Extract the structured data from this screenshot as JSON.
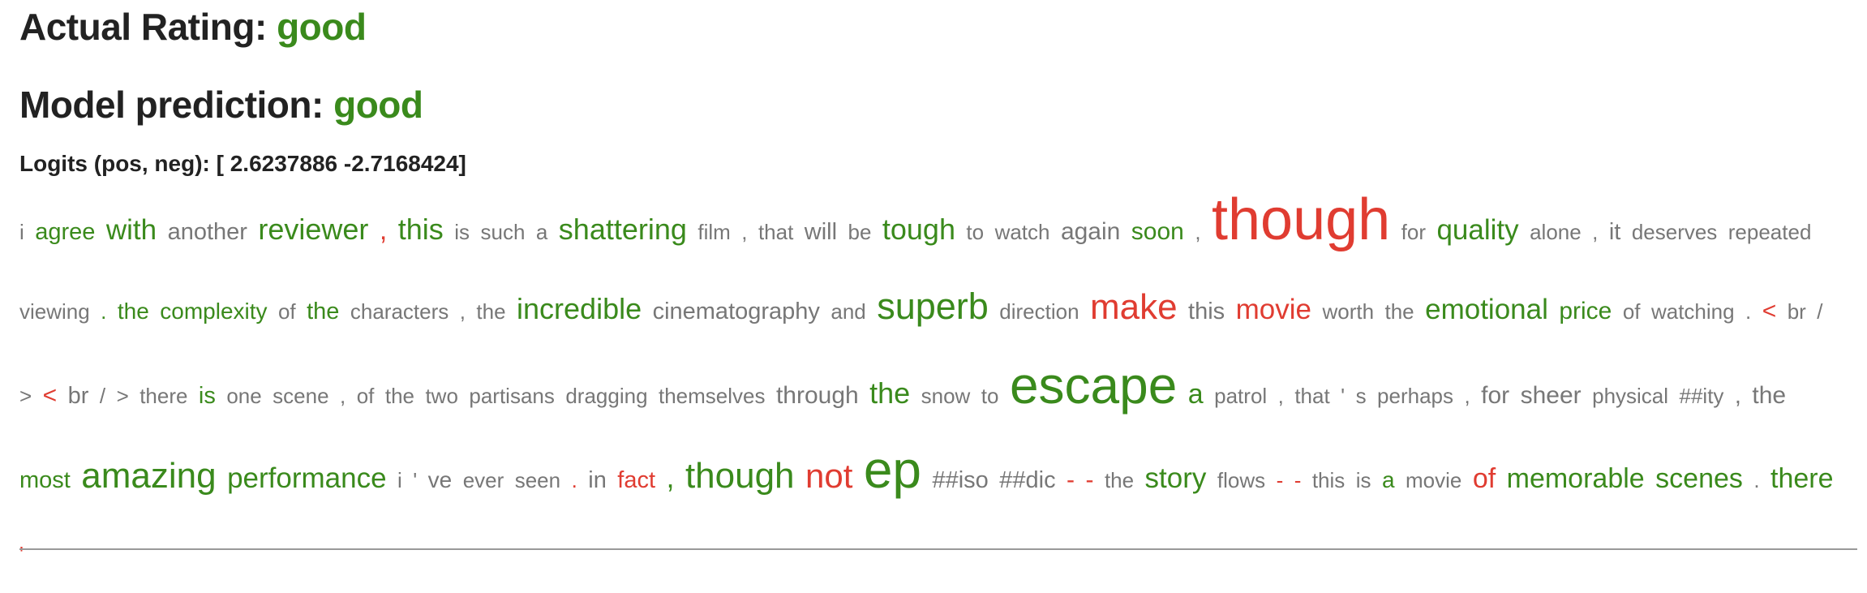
{
  "header": {
    "actual_label": "Actual Rating:",
    "actual_value": "good",
    "prediction_label": "Model prediction:",
    "prediction_value": "good",
    "logits_text": "Logits (pos, neg): [ 2.6237886 -2.7168424]"
  },
  "colors": {
    "positive": "#3a8a1c",
    "negative": "#e03c31",
    "neutral": "#777777"
  },
  "tokens": [
    {
      "t": "i",
      "c": "grey",
      "s": 26
    },
    {
      "t": "agree",
      "c": "green",
      "s": 29
    },
    {
      "t": "with",
      "c": "green",
      "s": 35
    },
    {
      "t": "another",
      "c": "grey",
      "s": 29
    },
    {
      "t": "reviewer",
      "c": "green",
      "s": 36
    },
    {
      "t": ",",
      "c": "red",
      "s": 34
    },
    {
      "t": "this",
      "c": "green",
      "s": 36
    },
    {
      "t": "is",
      "c": "grey",
      "s": 26
    },
    {
      "t": "such",
      "c": "grey",
      "s": 26
    },
    {
      "t": "a",
      "c": "grey",
      "s": 26
    },
    {
      "t": "shattering",
      "c": "green",
      "s": 36
    },
    {
      "t": "film",
      "c": "grey",
      "s": 26
    },
    {
      "t": ",",
      "c": "grey",
      "s": 26
    },
    {
      "t": "that",
      "c": "grey",
      "s": 26
    },
    {
      "t": "will",
      "c": "grey",
      "s": 29
    },
    {
      "t": "be",
      "c": "grey",
      "s": 26
    },
    {
      "t": "tough",
      "c": "green",
      "s": 36
    },
    {
      "t": "to",
      "c": "grey",
      "s": 26
    },
    {
      "t": "watch",
      "c": "grey",
      "s": 26
    },
    {
      "t": "again",
      "c": "grey",
      "s": 30
    },
    {
      "t": "soon",
      "c": "green",
      "s": 30
    },
    {
      "t": ",",
      "c": "grey",
      "s": 26
    },
    {
      "t": "though",
      "c": "red",
      "s": 72
    },
    {
      "t": "for",
      "c": "grey",
      "s": 26
    },
    {
      "t": "quality",
      "c": "green",
      "s": 35
    },
    {
      "t": "alone",
      "c": "grey",
      "s": 26
    },
    {
      "t": ",",
      "c": "grey",
      "s": 26
    },
    {
      "t": "it",
      "c": "grey",
      "s": 29
    },
    {
      "t": "deserves",
      "c": "grey",
      "s": 26
    },
    {
      "t": "repeated",
      "c": "grey",
      "s": 26
    },
    {
      "t": "viewing",
      "c": "grey",
      "s": 26
    },
    {
      "t": ".",
      "c": "green",
      "s": 26
    },
    {
      "t": "the",
      "c": "green",
      "s": 28
    },
    {
      "t": "complexity",
      "c": "green",
      "s": 28
    },
    {
      "t": "of",
      "c": "grey",
      "s": 26
    },
    {
      "t": "the",
      "c": "green",
      "s": 29
    },
    {
      "t": "characters",
      "c": "grey",
      "s": 26
    },
    {
      "t": ",",
      "c": "grey",
      "s": 26
    },
    {
      "t": "the",
      "c": "grey",
      "s": 26
    },
    {
      "t": "incredible",
      "c": "green",
      "s": 36
    },
    {
      "t": "cinematography",
      "c": "grey",
      "s": 29
    },
    {
      "t": "and",
      "c": "grey",
      "s": 26
    },
    {
      "t": "superb",
      "c": "green",
      "s": 45
    },
    {
      "t": "direction",
      "c": "grey",
      "s": 26
    },
    {
      "t": "make",
      "c": "red",
      "s": 44
    },
    {
      "t": "this",
      "c": "grey",
      "s": 29
    },
    {
      "t": "movie",
      "c": "red",
      "s": 35
    },
    {
      "t": "worth",
      "c": "grey",
      "s": 26
    },
    {
      "t": "the",
      "c": "grey",
      "s": 26
    },
    {
      "t": "emotional",
      "c": "green",
      "s": 35
    },
    {
      "t": "price",
      "c": "green",
      "s": 30
    },
    {
      "t": "of",
      "c": "grey",
      "s": 26
    },
    {
      "t": "watching",
      "c": "grey",
      "s": 26
    },
    {
      "t": ".",
      "c": "grey",
      "s": 26
    },
    {
      "t": "<",
      "c": "red",
      "s": 30
    },
    {
      "t": "br",
      "c": "grey",
      "s": 26
    },
    {
      "t": "/",
      "c": "grey",
      "s": 26
    },
    {
      "t": ">",
      "c": "grey",
      "s": 26
    },
    {
      "t": "<",
      "c": "red",
      "s": 30
    },
    {
      "t": "br",
      "c": "grey",
      "s": 29
    },
    {
      "t": "/",
      "c": "grey",
      "s": 26
    },
    {
      "t": ">",
      "c": "grey",
      "s": 26
    },
    {
      "t": "there",
      "c": "grey",
      "s": 26
    },
    {
      "t": "is",
      "c": "green",
      "s": 29
    },
    {
      "t": "one",
      "c": "grey",
      "s": 26
    },
    {
      "t": "scene",
      "c": "grey",
      "s": 26
    },
    {
      "t": ",",
      "c": "grey",
      "s": 26
    },
    {
      "t": "of",
      "c": "grey",
      "s": 26
    },
    {
      "t": "the",
      "c": "grey",
      "s": 26
    },
    {
      "t": "two",
      "c": "grey",
      "s": 26
    },
    {
      "t": "partisans",
      "c": "grey",
      "s": 26
    },
    {
      "t": "dragging",
      "c": "grey",
      "s": 26
    },
    {
      "t": "themselves",
      "c": "grey",
      "s": 26
    },
    {
      "t": "through",
      "c": "grey",
      "s": 30
    },
    {
      "t": "the",
      "c": "green",
      "s": 36
    },
    {
      "t": "snow",
      "c": "grey",
      "s": 26
    },
    {
      "t": "to",
      "c": "grey",
      "s": 26
    },
    {
      "t": "escape",
      "c": "green",
      "s": 64
    },
    {
      "t": "a",
      "c": "green",
      "s": 34
    },
    {
      "t": "patrol",
      "c": "grey",
      "s": 26
    },
    {
      "t": ",",
      "c": "grey",
      "s": 26
    },
    {
      "t": "that",
      "c": "grey",
      "s": 26
    },
    {
      "t": "'",
      "c": "grey",
      "s": 26
    },
    {
      "t": "s",
      "c": "grey",
      "s": 26
    },
    {
      "t": "perhaps",
      "c": "grey",
      "s": 26
    },
    {
      "t": ",",
      "c": "grey",
      "s": 26
    },
    {
      "t": "for",
      "c": "grey",
      "s": 30
    },
    {
      "t": "sheer",
      "c": "grey",
      "s": 30
    },
    {
      "t": "physical",
      "c": "grey",
      "s": 26
    },
    {
      "t": "##ity",
      "c": "grey",
      "s": 26
    },
    {
      "t": ",",
      "c": "grey",
      "s": 29
    },
    {
      "t": "the",
      "c": "grey",
      "s": 30
    },
    {
      "t": "most",
      "c": "green",
      "s": 29
    },
    {
      "t": "amazing",
      "c": "green",
      "s": 44
    },
    {
      "t": "performance",
      "c": "green",
      "s": 35
    },
    {
      "t": "i",
      "c": "grey",
      "s": 26
    },
    {
      "t": "'",
      "c": "grey",
      "s": 26
    },
    {
      "t": "ve",
      "c": "grey",
      "s": 28
    },
    {
      "t": "ever",
      "c": "grey",
      "s": 26
    },
    {
      "t": "seen",
      "c": "grey",
      "s": 26
    },
    {
      "t": ".",
      "c": "red",
      "s": 26
    },
    {
      "t": "in",
      "c": "grey",
      "s": 29
    },
    {
      "t": "fact",
      "c": "red",
      "s": 29
    },
    {
      "t": ",",
      "c": "green",
      "s": 36
    },
    {
      "t": "though",
      "c": "green",
      "s": 44
    },
    {
      "t": "not",
      "c": "red",
      "s": 42
    },
    {
      "t": "ep",
      "c": "green",
      "s": 64
    },
    {
      "t": "##iso",
      "c": "grey",
      "s": 29
    },
    {
      "t": "##dic",
      "c": "grey",
      "s": 29
    },
    {
      "t": "-",
      "c": "red",
      "s": 30
    },
    {
      "t": "-",
      "c": "red",
      "s": 30
    },
    {
      "t": "the",
      "c": "grey",
      "s": 26
    },
    {
      "t": "story",
      "c": "green",
      "s": 35
    },
    {
      "t": "flows",
      "c": "grey",
      "s": 26
    },
    {
      "t": "-",
      "c": "red",
      "s": 26
    },
    {
      "t": "-",
      "c": "red",
      "s": 26
    },
    {
      "t": "this",
      "c": "grey",
      "s": 26
    },
    {
      "t": "is",
      "c": "grey",
      "s": 26
    },
    {
      "t": "a",
      "c": "green",
      "s": 28
    },
    {
      "t": "movie",
      "c": "grey",
      "s": 26
    },
    {
      "t": "of",
      "c": "red",
      "s": 34
    },
    {
      "t": "memorable",
      "c": "green",
      "s": 34
    },
    {
      "t": "scenes",
      "c": "green",
      "s": 34
    },
    {
      "t": ".",
      "c": "grey",
      "s": 26
    },
    {
      "t": "there",
      "c": "green",
      "s": 34
    },
    {
      "t": "'",
      "c": "red",
      "s": 26
    }
  ]
}
